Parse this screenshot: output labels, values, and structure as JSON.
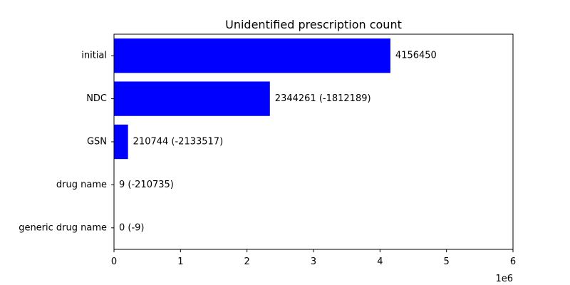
{
  "chart_data": {
    "type": "bar",
    "orientation": "horizontal",
    "title": "Unidentified prescription count",
    "xlabel": "",
    "ylabel": "",
    "categories": [
      "initial",
      "NDC",
      "GSN",
      "drug name",
      "generic drug name"
    ],
    "values": [
      4156450,
      2344261,
      210744,
      9,
      0
    ],
    "data_labels": [
      "4156450",
      "2344261 (-1812189)",
      "210744 (-2133517)",
      "9 (-210735)",
      "0 (-9)"
    ],
    "xlim": [
      0,
      6000000
    ],
    "x_ticks": [
      0,
      1000000,
      2000000,
      3000000,
      4000000,
      5000000,
      6000000
    ],
    "x_tick_labels": [
      "0",
      "1",
      "2",
      "3",
      "4",
      "5",
      "6"
    ],
    "x_offset_label": "1e6",
    "bar_color": "#0000ff",
    "grid": false,
    "legend": "none"
  }
}
